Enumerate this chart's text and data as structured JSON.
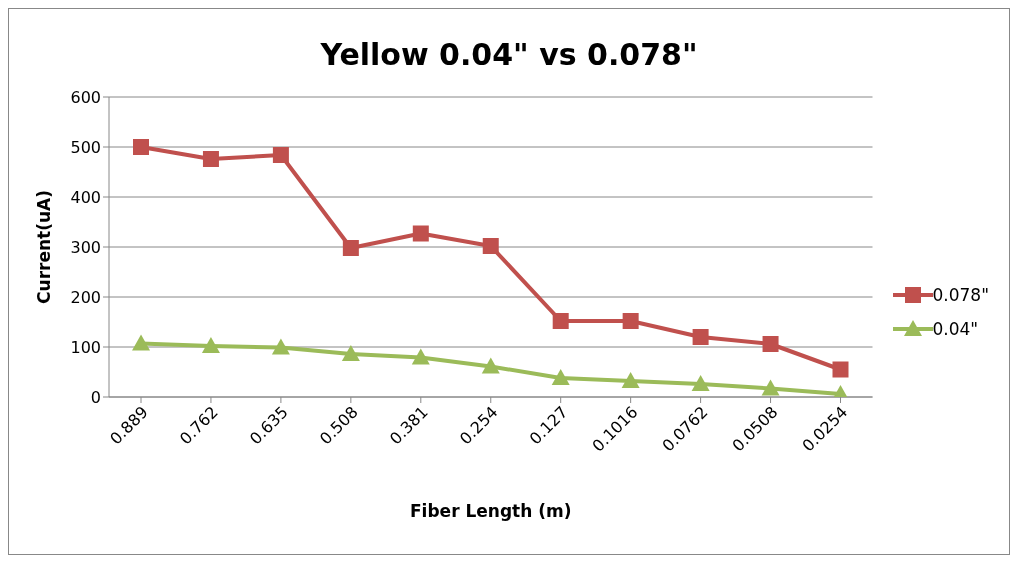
{
  "chart_data": {
    "type": "line",
    "title": "Yellow 0.04\" vs 0.078\"",
    "xlabel": "Fiber Length (m)",
    "ylabel": "Current(uA)",
    "categories": [
      "0.889",
      "0.762",
      "0.635",
      "0.508",
      "0.381",
      "0.254",
      "0.127",
      "0.1016",
      "0.0762",
      "0.0508",
      "0.0254"
    ],
    "series": [
      {
        "name": "0.078\"",
        "color": "#c0504d",
        "marker": "square",
        "values": [
          500,
          476,
          484,
          298,
          327,
          302,
          152,
          152,
          120,
          106,
          55
        ]
      },
      {
        "name": "0.04\"",
        "color": "#9bbb59",
        "marker": "triangle",
        "values": [
          107,
          102,
          99,
          86,
          79,
          61,
          38,
          32,
          26,
          17,
          6
        ]
      }
    ],
    "ylim": [
      0,
      600
    ],
    "yticks": [
      0,
      100,
      200,
      300,
      400,
      500,
      600
    ],
    "grid": "y",
    "legend": "right"
  }
}
